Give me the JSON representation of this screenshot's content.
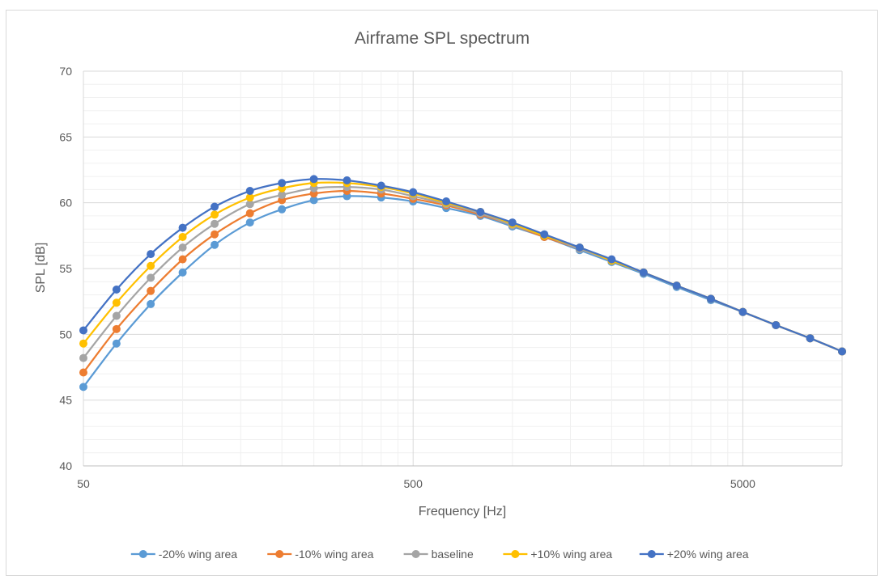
{
  "chart_data": {
    "type": "line",
    "title": "Airframe SPL spectrum",
    "xlabel": "Frequency [Hz]",
    "ylabel": "SPL [dB]",
    "xscale": "log",
    "xlim": [
      50,
      10000
    ],
    "ylim": [
      40,
      70
    ],
    "x_tick_labels": [
      "50",
      "500",
      "5000"
    ],
    "y_tick_labels": [
      "40",
      "45",
      "50",
      "55",
      "60",
      "65",
      "70"
    ],
    "grid": true,
    "legend_position": "bottom",
    "x": [
      50,
      63,
      80,
      100,
      125,
      160,
      200,
      250,
      315,
      400,
      500,
      630,
      800,
      1000,
      1250,
      1600,
      2000,
      2500,
      3150,
      4000,
      5000,
      6300,
      8000,
      10000
    ],
    "series": [
      {
        "name": "-20% wing area",
        "color": "#5B9BD5",
        "values": [
          46.0,
          49.3,
          52.3,
          54.7,
          56.8,
          58.5,
          59.5,
          60.2,
          60.5,
          60.4,
          60.1,
          59.6,
          59.0,
          58.2,
          57.4,
          56.4,
          55.5,
          54.6,
          53.6,
          52.6,
          51.7,
          50.7,
          49.7,
          48.7
        ]
      },
      {
        "name": "-10% wing area",
        "color": "#ED7D31",
        "values": [
          47.1,
          50.4,
          53.3,
          55.7,
          57.6,
          59.2,
          60.2,
          60.7,
          60.9,
          60.7,
          60.3,
          59.8,
          59.1,
          58.3,
          57.4,
          56.5,
          55.6,
          54.7,
          53.7,
          52.7,
          51.7,
          50.7,
          49.7,
          48.7
        ]
      },
      {
        "name": "baseline",
        "color": "#A5A5A5",
        "values": [
          48.2,
          51.4,
          54.3,
          56.6,
          58.4,
          59.9,
          60.6,
          61.1,
          61.2,
          61.0,
          60.5,
          59.9,
          59.2,
          58.3,
          57.5,
          56.5,
          55.6,
          54.7,
          53.7,
          52.7,
          51.7,
          50.7,
          49.7,
          48.7
        ]
      },
      {
        "name": "+10% wing area",
        "color": "#FFC000",
        "values": [
          49.3,
          52.4,
          55.2,
          57.4,
          59.1,
          60.4,
          61.1,
          61.5,
          61.5,
          61.2,
          60.7,
          60.0,
          59.3,
          58.4,
          57.5,
          56.6,
          55.6,
          54.7,
          53.7,
          52.7,
          51.7,
          50.7,
          49.7,
          48.7
        ]
      },
      {
        "name": "+20% wing area",
        "color": "#4472C4",
        "values": [
          50.3,
          53.4,
          56.1,
          58.1,
          59.7,
          60.9,
          61.5,
          61.8,
          61.7,
          61.3,
          60.8,
          60.1,
          59.3,
          58.5,
          57.6,
          56.6,
          55.7,
          54.7,
          53.7,
          52.7,
          51.7,
          50.7,
          49.7,
          48.7
        ]
      }
    ]
  }
}
